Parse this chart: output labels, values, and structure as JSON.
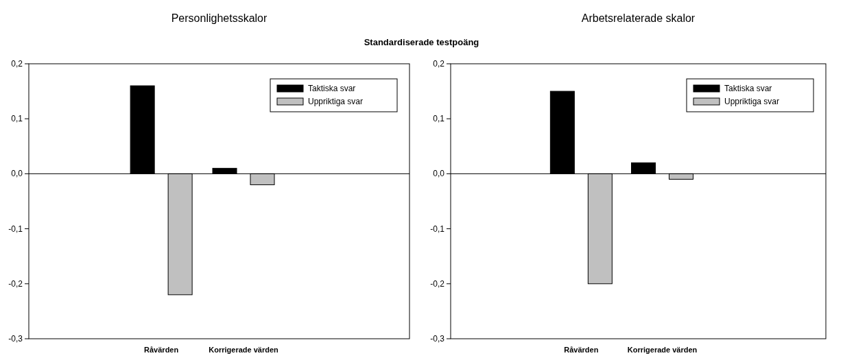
{
  "chart_data": [
    {
      "type": "bar",
      "title": "Personlighetsskalor",
      "subtitle": "Standardiserade testpoäng",
      "categories": [
        "Råvärden",
        "Korrigerade värden"
      ],
      "series": [
        {
          "name": "Taktiska svar",
          "color": "#000000",
          "values": [
            0.16,
            0.01
          ]
        },
        {
          "name": "Uppriktiga svar",
          "color": "#c0c0c0",
          "values": [
            -0.22,
            -0.02
          ]
        }
      ],
      "ylim": [
        -0.3,
        0.2
      ],
      "yticks": [
        {
          "value": -0.3,
          "label": "-0,3"
        },
        {
          "value": -0.2,
          "label": "-0,2"
        },
        {
          "value": -0.1,
          "label": "-0,1"
        },
        {
          "value": 0,
          "label": "0,0"
        },
        {
          "value": 0.1,
          "label": "0,1"
        },
        {
          "value": 0.2,
          "label": "0,2"
        }
      ],
      "legend": "top right"
    },
    {
      "type": "bar",
      "title": "Arbetsrelaterade skalor",
      "categories": [
        "Råvärden",
        "Korrigerade värden"
      ],
      "series": [
        {
          "name": "Taktiska svar",
          "color": "#000000",
          "values": [
            0.15,
            0.02
          ]
        },
        {
          "name": "Uppriktiga svar",
          "color": "#c0c0c0",
          "values": [
            -0.2,
            -0.01
          ]
        }
      ],
      "ylim": [
        -0.3,
        0.2
      ],
      "yticks": [
        {
          "value": -0.3,
          "label": "-0,3"
        },
        {
          "value": -0.2,
          "label": "-0,2"
        },
        {
          "value": -0.1,
          "label": "-0,1"
        },
        {
          "value": 0,
          "label": "0,0"
        },
        {
          "value": 0.1,
          "label": "0,1"
        },
        {
          "value": 0.2,
          "label": "0,2"
        }
      ],
      "legend": "top right"
    }
  ]
}
